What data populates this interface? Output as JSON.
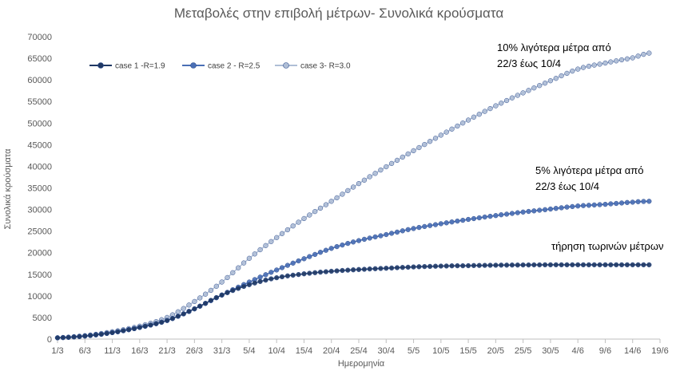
{
  "chart_data": {
    "type": "line",
    "title": "Μεταβολές στην επιβολή μέτρων- Συνολικά κρούσματα",
    "xlabel": "Ημερομηνία",
    "ylabel": "Συνολικά κρούσματα",
    "ylim": [
      0,
      70000
    ],
    "yticks": [
      0,
      5000,
      10000,
      15000,
      20000,
      25000,
      30000,
      35000,
      40000,
      45000,
      50000,
      55000,
      60000,
      65000,
      70000
    ],
    "x_start": "1/3",
    "x_end": "19/6",
    "x_tick_labels": [
      "1/3",
      "6/3",
      "11/3",
      "16/3",
      "21/3",
      "26/3",
      "31/3",
      "5/4",
      "10/4",
      "15/4",
      "20/4",
      "25/4",
      "30/4",
      "5/5",
      "10/5",
      "15/5",
      "20/5",
      "25/5",
      "30/5",
      "4/6",
      "9/6",
      "14/6",
      "19/6"
    ],
    "grid": false,
    "legend_position": "top-left",
    "series": [
      {
        "name": "case 1  -R=1.9",
        "color": "#1F3864",
        "x": [
          "1/3",
          "6/3",
          "11/3",
          "16/3",
          "21/3",
          "26/3",
          "31/3",
          "5/4",
          "10/4",
          "15/4",
          "20/4",
          "25/4",
          "30/4",
          "5/5",
          "10/5",
          "15/5",
          "20/5",
          "25/5",
          "30/5",
          "4/6",
          "9/6",
          "14/6",
          "17/6"
        ],
        "values": [
          300,
          700,
          1500,
          2700,
          4300,
          7000,
          10200,
          12600,
          14200,
          15100,
          15700,
          16100,
          16400,
          16700,
          16900,
          17000,
          17100,
          17150,
          17200,
          17200,
          17200,
          17200,
          17200
        ]
      },
      {
        "name": "case 2  - R=2.5",
        "color": "#4A6FB5",
        "x": [
          "1/3",
          "6/3",
          "11/3",
          "16/3",
          "21/3",
          "26/3",
          "31/3",
          "5/4",
          "10/4",
          "15/4",
          "20/4",
          "25/4",
          "30/4",
          "5/5",
          "10/5",
          "15/5",
          "20/5",
          "25/5",
          "30/5",
          "4/6",
          "9/6",
          "14/6",
          "17/6"
        ],
        "values": [
          300,
          700,
          1500,
          2700,
          4300,
          7000,
          10200,
          13200,
          16000,
          18600,
          21000,
          22800,
          24200,
          25600,
          26700,
          27700,
          28600,
          29400,
          30100,
          30800,
          31200,
          31700,
          31900
        ]
      },
      {
        "name": "case 3- R=3.0",
        "color": "#AFBED6",
        "x": [
          "1/3",
          "6/3",
          "11/3",
          "16/3",
          "21/3",
          "26/3",
          "31/3",
          "5/4",
          "10/4",
          "15/4",
          "20/4",
          "25/4",
          "30/4",
          "5/5",
          "10/5",
          "15/5",
          "20/5",
          "25/5",
          "30/5",
          "4/6",
          "9/6",
          "14/6",
          "17/6"
        ],
        "values": [
          300,
          800,
          1700,
          3000,
          5000,
          8700,
          13200,
          18700,
          23500,
          27900,
          31900,
          36000,
          39900,
          43600,
          47200,
          50700,
          54000,
          57000,
          59800,
          62500,
          63900,
          65100,
          66200
        ]
      }
    ],
    "annotations": [
      {
        "lines": [
          "10% λιγότερα μέτρα από",
          "22/3 έως 10/4"
        ]
      },
      {
        "lines": [
          "5% λιγότερα μέτρα από",
          "22/3 έως 10/4"
        ]
      },
      {
        "lines": [
          "τήρηση τωρινών μέτρων"
        ]
      }
    ]
  }
}
